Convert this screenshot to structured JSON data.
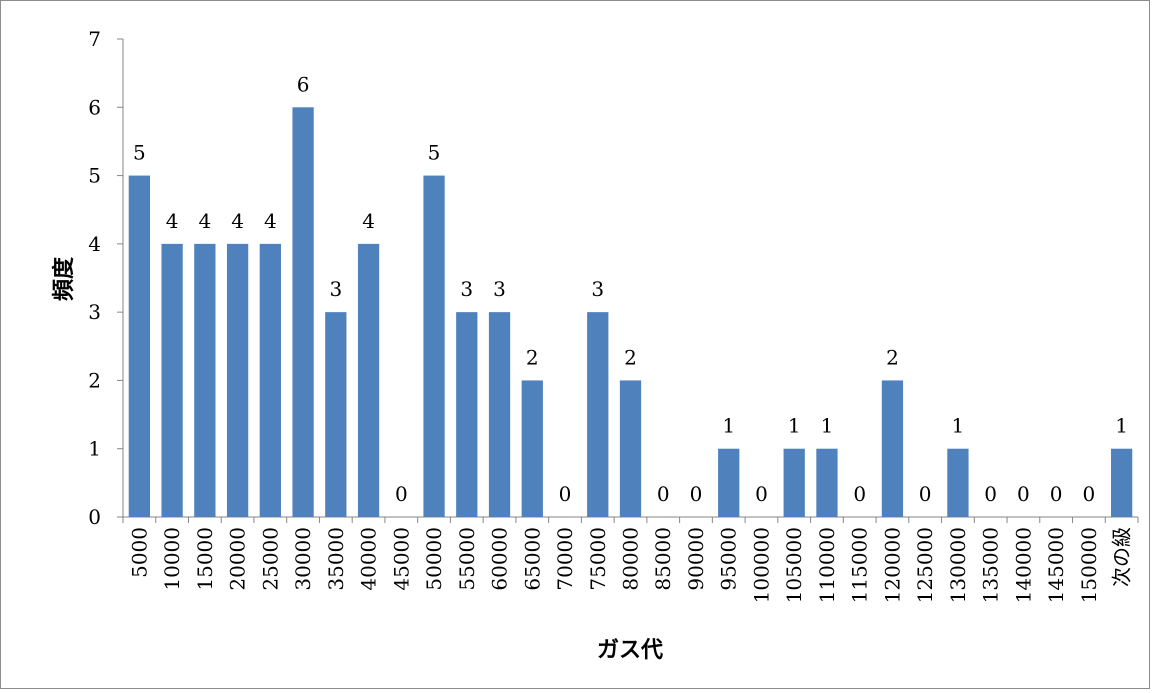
{
  "chart_data": {
    "type": "bar",
    "title": "",
    "xlabel": "ガス代",
    "ylabel": "頻度",
    "ylim": [
      0,
      7
    ],
    "yticks": [
      "0",
      "1",
      "2",
      "3",
      "4",
      "5",
      "6",
      "7"
    ],
    "grid": false,
    "legend": "none",
    "bar_color": "#4f81bd",
    "categories": [
      "5000",
      "10000",
      "15000",
      "20000",
      "25000",
      "30000",
      "35000",
      "40000",
      "45000",
      "50000",
      "55000",
      "60000",
      "65000",
      "70000",
      "75000",
      "80000",
      "85000",
      "90000",
      "95000",
      "100000",
      "105000",
      "110000",
      "115000",
      "120000",
      "125000",
      "130000",
      "135000",
      "140000",
      "145000",
      "150000",
      "次の級"
    ],
    "values": [
      5,
      4,
      4,
      4,
      4,
      6,
      3,
      4,
      0,
      5,
      3,
      3,
      2,
      0,
      3,
      2,
      0,
      0,
      1,
      0,
      1,
      1,
      0,
      2,
      0,
      1,
      0,
      0,
      0,
      0,
      1
    ],
    "data_labels": [
      "5",
      "4",
      "4",
      "4",
      "4",
      "6",
      "3",
      "4",
      "0",
      "5",
      "3",
      "3",
      "2",
      "0",
      "3",
      "2",
      "0",
      "0",
      "1",
      "0",
      "1",
      "1",
      "0",
      "2",
      "0",
      "1",
      "0",
      "0",
      "0",
      "0",
      "1"
    ]
  }
}
